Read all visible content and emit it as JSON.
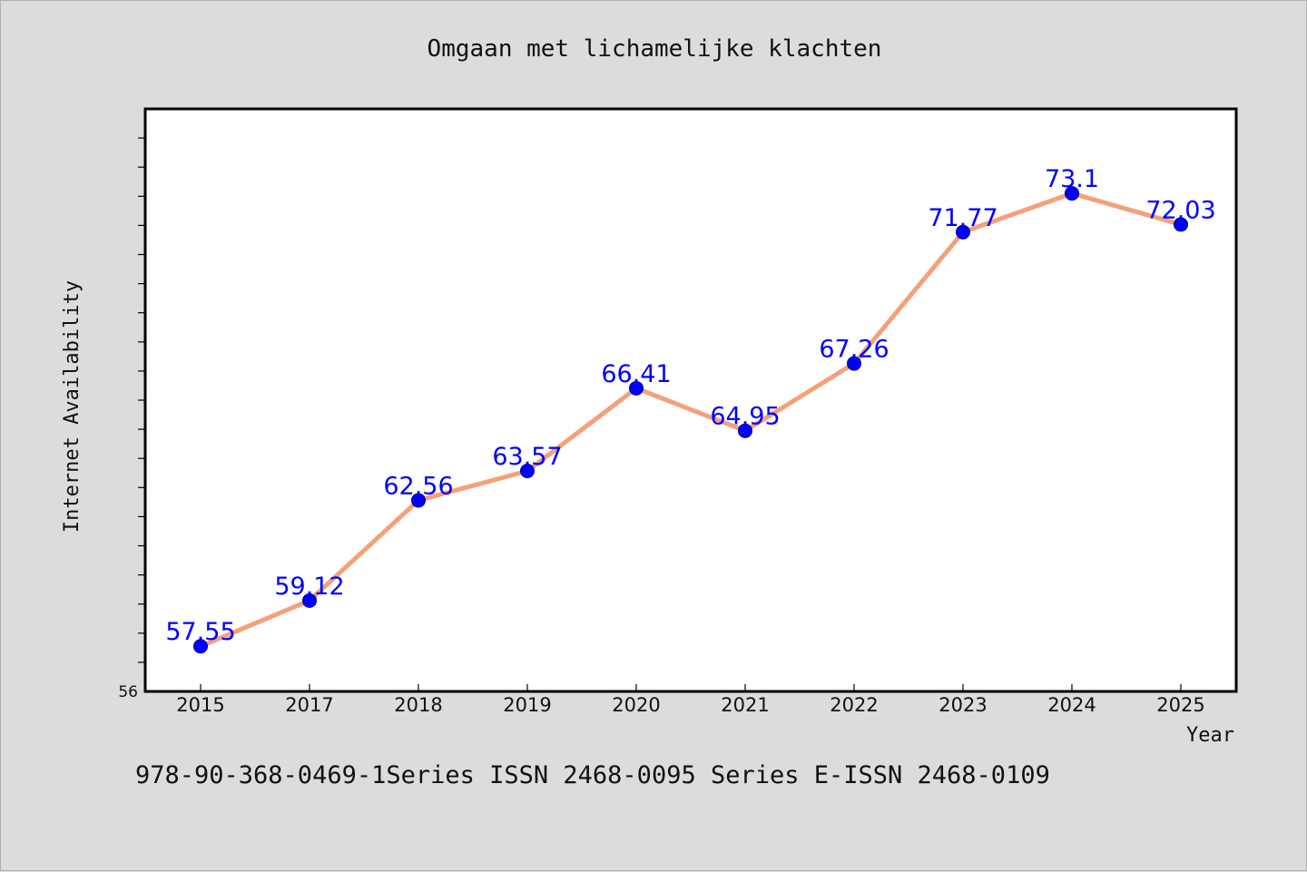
{
  "chart_data": {
    "type": "line",
    "title": "Omgaan met lichamelijke klachten",
    "xlabel": "Year",
    "ylabel": "Internet Availability",
    "categories": [
      "2015",
      "2017",
      "2018",
      "2019",
      "2020",
      "2021",
      "2022",
      "2023",
      "2024",
      "2025"
    ],
    "series": [
      {
        "values": [
          57.55,
          59.12,
          62.56,
          63.57,
          66.41,
          64.95,
          67.26,
          71.77,
          73.1,
          72.03
        ],
        "data_labels": [
          "57.55",
          "59.12",
          "62.56",
          "63.57",
          "66.41",
          "64.95",
          "67.26",
          "71.77",
          "73.1",
          "72.03"
        ]
      }
    ],
    "ylim": [
      56,
      76
    ],
    "y_tick_labels": [
      "56"
    ],
    "grid": false,
    "line_color": "#f4a07a",
    "marker_color": "#0000ff",
    "label_color": "#0000ff"
  },
  "footer_text": "978-90-368-0469-1Series ISSN 2468-0095 Series E-ISSN 2468-0109"
}
